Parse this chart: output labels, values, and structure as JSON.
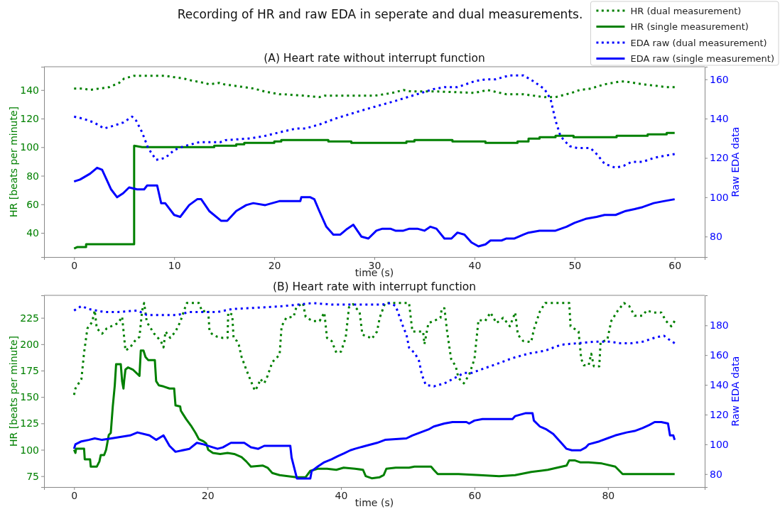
{
  "chart_data": [
    {
      "type": "line",
      "title": "(A) Heart rate without interrupt function",
      "annotations": [
        "Recording of HR and raw EDA in seperate and dual measurements."
      ],
      "xlabel": "time (s)",
      "ylabel": "HR [beats per minute]",
      "y2label": "Raw EDA data",
      "legend": "top right",
      "xlim": [
        -3,
        63
      ],
      "xticks": [
        0,
        10,
        20,
        30,
        40,
        50,
        60
      ],
      "ylim": [
        23.1,
        156.3
      ],
      "yticks": [
        40,
        60,
        80,
        100,
        120,
        140
      ],
      "y2lim": [
        69.6,
        166.4
      ],
      "y2ticks": [
        80,
        100,
        120,
        140,
        160
      ],
      "series": [
        {
          "name": "HR (dual measurement)",
          "color": "#008000",
          "line_style": "dotted",
          "x": [
            0,
            1,
            1.5,
            2.5,
            3.5,
            4.5,
            5,
            6,
            9,
            10,
            11,
            11.5,
            13,
            13.5,
            14.5,
            15,
            17,
            18,
            19,
            20.5,
            21,
            23,
            24.5,
            25,
            28,
            30,
            31.8,
            32.9,
            33.7,
            36.2,
            40,
            41.3,
            43.2,
            44.9,
            47,
            48.1,
            49.7,
            50.5,
            51.6,
            53,
            54.6,
            55.1,
            56.8,
            58.1,
            59.2,
            60
          ],
          "values": [
            141,
            141,
            140,
            141,
            142,
            145,
            148,
            150,
            150,
            149,
            148,
            147,
            145,
            144,
            145,
            144,
            142,
            141,
            139,
            137,
            137,
            136,
            135,
            136,
            136,
            136,
            138,
            140,
            139,
            139,
            138,
            140,
            137,
            137,
            135,
            135,
            138,
            140,
            141,
            144,
            146,
            146,
            144,
            143,
            142,
            142
          ]
        },
        {
          "name": "HR (single measurement)",
          "color": "#008000",
          "line_style": "solid",
          "x": [
            0,
            0.3,
            1.2,
            1.2,
            6,
            6,
            6.8,
            14,
            14,
            16.2,
            16.2,
            17,
            17,
            20,
            20,
            20.7,
            20.7,
            23,
            25.4,
            25.4,
            27.7,
            27.7,
            33.2,
            33.2,
            34,
            34,
            37.8,
            37.8,
            41.1,
            41.1,
            44.3,
            44.3,
            45.4,
            45.4,
            46.5,
            46.5,
            48.1,
            48.1,
            49.9,
            49.9,
            54.2,
            54.2,
            57.3,
            57.3,
            59.2,
            59.2,
            60
          ],
          "values": [
            29,
            30,
            30,
            32,
            32,
            101,
            100,
            100,
            101,
            101,
            102,
            102,
            103,
            103,
            104,
            104,
            105,
            105,
            105,
            104,
            104,
            103,
            103,
            104,
            104,
            105,
            105,
            104,
            104,
            103,
            103,
            104,
            104,
            106,
            106,
            107,
            107,
            108,
            108,
            107,
            107,
            108,
            108,
            109,
            109,
            110,
            110
          ]
        },
        {
          "name": "EDA raw (dual measurement)",
          "color": "#0000ff",
          "line_style": "dotted",
          "axis": "y2",
          "x": [
            0,
            0.9,
            2,
            3,
            3.7,
            4.9,
            5.8,
            6.2,
            6.8,
            7.4,
            8.2,
            9.1,
            10,
            11,
            12.5,
            14.6,
            15.1,
            17.7,
            18.9,
            20.5,
            22.2,
            23.1,
            24.5,
            26.1,
            28,
            30,
            32.1,
            34,
            35.9,
            37,
            38.3,
            40,
            41.1,
            42.1,
            43.5,
            44.9,
            45.9,
            47,
            47.6,
            48.1,
            48.6,
            49.5,
            50.3,
            51.6,
            52.2,
            53,
            54.1,
            54.9,
            55.7,
            56.8,
            57.9,
            58.9,
            60
          ],
          "values": [
            141,
            140,
            138,
            135,
            136,
            138,
            141,
            139,
            133,
            125,
            119,
            120,
            124,
            126,
            128,
            128,
            129,
            130,
            131,
            133,
            135,
            135,
            137,
            140,
            143,
            146,
            149,
            152,
            155,
            156,
            156,
            159,
            160,
            160,
            162,
            162,
            159,
            155,
            150,
            139,
            131,
            126,
            125,
            125,
            122,
            117,
            115,
            116,
            118,
            118,
            120,
            121,
            122
          ]
        },
        {
          "name": "EDA raw (single measurement)",
          "color": "#0000ff",
          "line_style": "solid",
          "axis": "y2",
          "x": [
            0,
            0.6,
            1.6,
            2.3,
            2.8,
            3.7,
            4.3,
            4.9,
            5.5,
            6.3,
            7,
            7.3,
            8.3,
            8.7,
            9.1,
            10,
            10.6,
            11.5,
            12.3,
            12.7,
            13.5,
            14.7,
            15.3,
            16.2,
            17.2,
            17.9,
            19.1,
            19.8,
            20.5,
            21,
            22.6,
            22.7,
            23.6,
            24,
            24.5,
            25.2,
            25.9,
            26.6,
            27.3,
            27.9,
            28.7,
            29.4,
            30.2,
            30.8,
            31.6,
            32.1,
            32.9,
            33.5,
            34.3,
            35,
            35.6,
            36.2,
            37,
            37.7,
            38.3,
            39,
            39.7,
            40.4,
            41.1,
            41.6,
            42.7,
            43.2,
            44,
            44.9,
            45.4,
            46.5,
            48.1,
            49.2,
            50,
            51.1,
            52.2,
            53,
            54.1,
            55.1,
            56,
            56.8,
            57.9,
            58.9,
            60
          ],
          "values": [
            108,
            109,
            112,
            115,
            114,
            104,
            100,
            102,
            105,
            104,
            104,
            106,
            106,
            97,
            97,
            91,
            90,
            96,
            99,
            99,
            93,
            88,
            88,
            93,
            96,
            97,
            96,
            97,
            98,
            98,
            98,
            100,
            100,
            99,
            93,
            85,
            81,
            81,
            84,
            86,
            80,
            79,
            83,
            84,
            84,
            83,
            83,
            84,
            84,
            83,
            85,
            84,
            79,
            79,
            82,
            81,
            77,
            75,
            76,
            78,
            78,
            79,
            79,
            81,
            82,
            83,
            83,
            85,
            87,
            89,
            90,
            91,
            91,
            93,
            94,
            95,
            97,
            98,
            99
          ]
        }
      ]
    },
    {
      "type": "line",
      "title": "(B) Heart rate with interrupt function",
      "xlabel": "time (s)",
      "ylabel": "HR [beats per minute]",
      "y2label": "Raw EDA data",
      "xlim": [
        -4.5,
        94.5
      ],
      "xticks": [
        0,
        20,
        40,
        60,
        80
      ],
      "ylim": [
        64.7,
        246.3
      ],
      "yticks": [
        75,
        100,
        125,
        150,
        175,
        200,
        225
      ],
      "y2lim": [
        71.3,
        200.2
      ],
      "y2ticks": [
        80,
        100,
        120,
        140,
        160,
        180
      ],
      "series": [
        {
          "color": "#008000",
          "line_style": "dotted",
          "x": [
            0,
            0.2,
            0.6,
            1.1,
            1.5,
            2,
            2.7,
            3.1,
            3.4,
            4.2,
            4.9,
            6.6,
            7.2,
            7.7,
            8.4,
            9.1,
            9.8,
            10.2,
            10.5,
            10.9,
            12,
            13,
            13.4,
            13.7,
            14.4,
            15.2,
            15.9,
            16.6,
            16.9,
            18.7,
            19.2,
            20.1,
            20.3,
            20.8,
            21.5,
            22.3,
            23,
            23.1,
            23.7,
            23.9,
            24.4,
            24.7,
            25.1,
            25.8,
            26.5,
            27.1,
            27.6,
            27.9,
            28.5,
            29,
            29.7,
            30.8,
            31.1,
            31.8,
            32.9,
            33.3,
            34.3,
            34.7,
            35.7,
            36.8,
            37.5,
            37.9,
            38.6,
            39.3,
            40,
            40.7,
            41.2,
            41.8,
            42.8,
            43.2,
            44.1,
            44.6,
            45.4,
            45.8,
            46.6,
            50.2,
            50.7,
            52.3,
            52.5,
            53.1,
            53.9,
            54.9,
            55.1,
            55.5,
            55.9,
            56.5,
            57.2,
            57.6,
            58.4,
            59.2,
            60,
            60.6,
            61.6,
            62.4,
            63.3,
            64.3,
            65.3,
            66.1,
            66.5,
            67.3,
            68.5,
            68.9,
            69.8,
            70.6,
            74.2,
            74.4,
            75.6,
            76,
            76.4,
            77.1,
            77.5,
            77.9,
            78.7,
            78.9,
            79.9,
            80.5,
            81.5,
            82.4,
            83.2,
            84,
            85.2,
            85.8,
            86.8,
            88,
            88.7,
            89.5,
            90
          ],
          "values": [
            152,
            158,
            162,
            167,
            192,
            215,
            221,
            232,
            215,
            210,
            215,
            220,
            226,
            194,
            197,
            203,
            207,
            232,
            239,
            221,
            210,
            203,
            197,
            212,
            206,
            212,
            221,
            234,
            239,
            239,
            231,
            232,
            212,
            209,
            207,
            206,
            206,
            230,
            228,
            206,
            203,
            199,
            188,
            176,
            165,
            156,
            161,
            167,
            163,
            170,
            183,
            190,
            217,
            225,
            226,
            235,
            239,
            226,
            222,
            222,
            230,
            206,
            203,
            192,
            193,
            206,
            235,
            238,
            230,
            209,
            207,
            205,
            212,
            225,
            239,
            239,
            212,
            212,
            200,
            220,
            222,
            225,
            234,
            234,
            212,
            186,
            179,
            168,
            163,
            171,
            186,
            223,
            222,
            230,
            220,
            225,
            217,
            230,
            209,
            203,
            202,
            214,
            231,
            239,
            239,
            217,
            212,
            186,
            180,
            180,
            191,
            179,
            179,
            202,
            204,
            222,
            232,
            239,
            236,
            227,
            227,
            232,
            230,
            230,
            222,
            217,
            222
          ]
        },
        {
          "color": "#008000",
          "line_style": "solid",
          "x": [
            0,
            0.2,
            0.3,
            1.5,
            1.6,
            2.4,
            2.5,
            3.4,
            3.8,
            4,
            4.5,
            4.8,
            5.2,
            5.5,
            5.8,
            6.1,
            6.3,
            7,
            7.2,
            7.4,
            7.5,
            7.7,
            8.1,
            8.8,
            9.8,
            10,
            10.4,
            10.7,
            11.1,
            12.1,
            12.3,
            12.7,
            13.4,
            14.3,
            15,
            15.2,
            15.9,
            16,
            16.8,
            17.5,
            18.2,
            18.7,
            19.4,
            19.8,
            20.1,
            20.8,
            21.9,
            23,
            24,
            25.1,
            25.8,
            26.5,
            28.3,
            29,
            29.7,
            30.8,
            33.3,
            34.7,
            35.4,
            36.5,
            37.9,
            39.3,
            40.4,
            42.1,
            43.3,
            43.7,
            44.6,
            45.8,
            46.4,
            46.8,
            48.2,
            50.2,
            51,
            53.5,
            53.9,
            54.5,
            57.6,
            60.8,
            63.7,
            66.1,
            68.5,
            71,
            73.8,
            74.2,
            75,
            75.9,
            77.1,
            79.1,
            81.1,
            82.2,
            87.2,
            90
          ],
          "values": [
            100,
            97,
            101,
            101,
            91,
            91,
            84,
            84,
            89,
            95,
            95,
            100,
            114,
            116,
            141,
            161,
            181,
            181,
            165,
            158,
            165,
            176,
            178,
            176,
            170,
            194,
            194,
            188,
            185,
            185,
            165,
            161,
            160,
            158,
            158,
            142,
            141,
            137,
            129,
            123,
            116,
            110,
            108,
            106,
            100,
            97,
            96,
            97,
            96,
            93,
            89,
            84,
            85,
            83,
            78,
            76,
            74,
            74,
            80,
            82,
            82,
            81,
            83,
            82,
            81,
            75,
            73,
            74,
            76,
            82,
            83,
            83,
            84,
            84,
            81,
            77,
            77,
            76,
            75,
            76,
            79,
            81,
            85,
            90,
            90,
            88,
            88,
            87,
            84,
            77,
            77,
            77
          ]
        },
        {
          "color": "#0000ff",
          "line_style": "dotted",
          "axis": "y2",
          "x": [
            0,
            1.1,
            2.2,
            4.5,
            6.6,
            9.5,
            10.9,
            13,
            15.5,
            17.3,
            19.4,
            21.5,
            23.7,
            27.9,
            31.5,
            33.6,
            35.7,
            38.6,
            42.1,
            46.2,
            47.4,
            48.2,
            48.6,
            49.4,
            49.8,
            50.2,
            51.1,
            51.7,
            52.1,
            52.7,
            53.9,
            55.5,
            57.2,
            58.4,
            59.6,
            60.8,
            63.3,
            65.7,
            68.1,
            70.6,
            73,
            75.4,
            77.9,
            80.3,
            81.9,
            83.5,
            85.2,
            87.2,
            88.4,
            89.3,
            90
          ],
          "values": [
            190,
            193,
            191,
            189,
            189,
            190,
            187,
            187,
            187,
            189,
            189,
            189,
            191,
            192,
            193,
            194,
            195,
            194,
            194,
            194,
            195,
            193,
            188,
            178,
            174,
            165,
            161,
            156,
            147,
            140,
            139,
            141,
            145,
            148,
            148,
            150,
            154,
            158,
            161,
            163,
            167,
            168,
            169,
            169,
            168,
            168,
            169,
            172,
            173,
            170,
            168
          ]
        },
        {
          "color": "#0000ff",
          "line_style": "solid",
          "axis": "y2",
          "x": [
            0,
            0.2,
            1.1,
            2.2,
            3.1,
            4.2,
            5.6,
            8.4,
            9.5,
            11.3,
            12.3,
            13.4,
            14.3,
            15.2,
            17.3,
            18.4,
            19.4,
            20.8,
            21.5,
            22.3,
            23.5,
            25.5,
            26.5,
            27.6,
            28.5,
            30.1,
            32.4,
            32.6,
            33.4,
            35.4,
            35.6,
            36.5,
            37.5,
            38.6,
            39.5,
            40.5,
            41.4,
            42.1,
            43.7,
            45.4,
            46.6,
            49.8,
            50.7,
            51.9,
            53.1,
            53.9,
            55.5,
            56.7,
            58.8,
            59.2,
            60,
            61.2,
            65.7,
            66.1,
            67.7,
            68.7,
            68.9,
            69.8,
            70.8,
            71.8,
            73,
            73.8,
            74.6,
            75.9,
            76.7,
            77.1,
            78.7,
            79.9,
            81.1,
            82.8,
            84,
            85.2,
            86.2,
            87,
            88,
            89,
            89.3,
            89.8,
            90
          ],
          "values": [
            97,
            100,
            102,
            103,
            104,
            103,
            104,
            106,
            108,
            106,
            103,
            106,
            99,
            95,
            97,
            101,
            100,
            98,
            97,
            98,
            101,
            101,
            98,
            97,
            99,
            99,
            99,
            91,
            77,
            77,
            82,
            85,
            88,
            90,
            92,
            94,
            96,
            97,
            99,
            101,
            103,
            104,
            106,
            108,
            110,
            112,
            114,
            115,
            115,
            114,
            116,
            117,
            117,
            119,
            121,
            121,
            116,
            112,
            110,
            107,
            101,
            97,
            96,
            96,
            98,
            100,
            102,
            104,
            106,
            108,
            109,
            111,
            113,
            115,
            115,
            114,
            106,
            106,
            103
          ]
        }
      ]
    }
  ]
}
